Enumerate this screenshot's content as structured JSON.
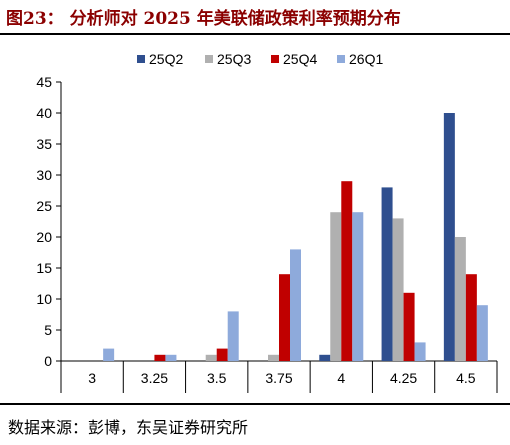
{
  "figure": {
    "title": "图23： 分析师对 2025 年美联储政策利率预期分布",
    "source": "数据来源：彭博，东吴证券研究所"
  },
  "chart_data": {
    "type": "bar",
    "categories": [
      "3",
      "3.25",
      "3.5",
      "3.75",
      "4",
      "4.25",
      "4.5"
    ],
    "series": [
      {
        "name": "25Q2",
        "color": "#2f4f8f",
        "values": [
          0,
          0,
          0,
          0,
          1,
          28,
          40
        ]
      },
      {
        "name": "25Q3",
        "color": "#b0b0b0",
        "values": [
          0,
          0,
          1,
          1,
          24,
          23,
          20
        ]
      },
      {
        "name": "25Q4",
        "color": "#c00000",
        "values": [
          0,
          1,
          2,
          14,
          29,
          11,
          14
        ]
      },
      {
        "name": "26Q1",
        "color": "#8eaadb",
        "values": [
          2,
          1,
          8,
          18,
          24,
          3,
          9
        ]
      }
    ],
    "ylim": [
      0,
      45
    ],
    "yticks": [
      "0",
      "5",
      "10",
      "15",
      "20",
      "25",
      "30",
      "35",
      "40",
      "45"
    ],
    "legend": "top",
    "grid": false
  }
}
